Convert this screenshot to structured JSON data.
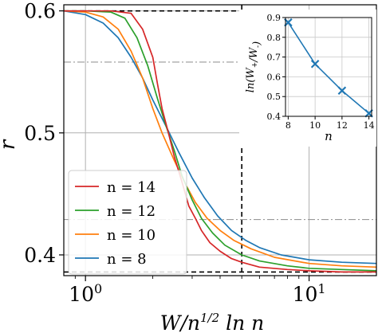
{
  "chart_data": [
    {
      "type": "line",
      "xscale": "log",
      "xlim": [
        0.8,
        20
      ],
      "ylim": [
        0.383,
        0.605
      ],
      "xlabel": "W/n^{1/2} ln n",
      "ylabel": "r",
      "x_ticks_major": [
        {
          "value": 1,
          "label": "10^0"
        },
        {
          "value": 10,
          "label": "10^1"
        }
      ],
      "y_ticks": [
        {
          "value": 0.4,
          "label": "0.4"
        },
        {
          "value": 0.5,
          "label": "0.5"
        },
        {
          "value": 0.6,
          "label": "0.6"
        }
      ],
      "grid": true,
      "legend_position": "lower-left",
      "series": [
        {
          "name": "n = 14",
          "color": "#d62728",
          "x": [
            0.8,
            1.0,
            1.3,
            1.6,
            1.8,
            2.0,
            2.1,
            2.2,
            2.35,
            2.5,
            2.7,
            2.9,
            3.1,
            3.3,
            3.6,
            4.0,
            4.5,
            5.0,
            6.0,
            8.0,
            10.0,
            14.0,
            20.0
          ],
          "y": [
            0.6,
            0.6,
            0.6,
            0.598,
            0.585,
            0.562,
            0.54,
            0.52,
            0.5,
            0.48,
            0.46,
            0.44,
            0.43,
            0.42,
            0.41,
            0.403,
            0.397,
            0.394,
            0.39,
            0.388,
            0.387,
            0.386,
            0.386
          ]
        },
        {
          "name": "n = 12",
          "color": "#2ca02c",
          "x": [
            0.8,
            1.0,
            1.3,
            1.5,
            1.7,
            1.9,
            2.1,
            2.3,
            2.5,
            2.7,
            3.0,
            3.3,
            3.7,
            4.2,
            5.0,
            6.0,
            8.0,
            10.0,
            14.0,
            20.0
          ],
          "y": [
            0.6,
            0.6,
            0.599,
            0.594,
            0.578,
            0.555,
            0.528,
            0.505,
            0.485,
            0.465,
            0.445,
            0.43,
            0.418,
            0.408,
            0.4,
            0.395,
            0.391,
            0.389,
            0.388,
            0.387
          ]
        },
        {
          "name": "n = 10",
          "color": "#ff7f0e",
          "x": [
            0.8,
            1.0,
            1.2,
            1.4,
            1.6,
            1.8,
            2.0,
            2.2,
            2.5,
            2.8,
            3.1,
            3.5,
            4.0,
            4.6,
            5.5,
            7.0,
            10.0,
            14.0,
            20.0
          ],
          "y": [
            0.6,
            0.599,
            0.595,
            0.585,
            0.567,
            0.545,
            0.52,
            0.5,
            0.477,
            0.458,
            0.443,
            0.43,
            0.42,
            0.412,
            0.405,
            0.398,
            0.393,
            0.391,
            0.39
          ]
        },
        {
          "name": "n = 8",
          "color": "#1f77b4",
          "x": [
            0.8,
            1.0,
            1.2,
            1.4,
            1.6,
            1.8,
            2.0,
            2.3,
            2.6,
            3.0,
            3.4,
            3.9,
            4.5,
            5.2,
            6.0,
            7.5,
            10.0,
            14.0,
            20.0
          ],
          "y": [
            0.6,
            0.597,
            0.59,
            0.578,
            0.562,
            0.545,
            0.527,
            0.505,
            0.485,
            0.463,
            0.447,
            0.432,
            0.42,
            0.412,
            0.406,
            0.4,
            0.396,
            0.394,
            0.393
          ]
        }
      ],
      "reference_lines": [
        {
          "orientation": "horizontal",
          "value": 0.6,
          "style": "dashed",
          "color": "#000000"
        },
        {
          "orientation": "horizontal",
          "value": 0.386,
          "style": "dashed",
          "color": "#000000"
        },
        {
          "orientation": "vertical",
          "value": 5.0,
          "style": "dashed",
          "color": "#000000"
        },
        {
          "orientation": "horizontal",
          "value": 0.558,
          "style": "dashdot",
          "color": "#999999"
        },
        {
          "orientation": "horizontal",
          "value": 0.429,
          "style": "dashdot",
          "color": "#999999"
        }
      ]
    },
    {
      "type": "line",
      "role": "inset",
      "xlabel": "n",
      "ylabel": "ln(W_+/W_-)",
      "xlim": [
        7.8,
        14.2
      ],
      "ylim": [
        0.4,
        0.9
      ],
      "x_ticks": [
        {
          "value": 8,
          "label": "8"
        },
        {
          "value": 10,
          "label": "10"
        },
        {
          "value": 12,
          "label": "12"
        },
        {
          "value": 14,
          "label": "14"
        }
      ],
      "y_ticks": [
        {
          "value": 0.4,
          "label": "0.4"
        },
        {
          "value": 0.5,
          "label": "0.5"
        },
        {
          "value": 0.6,
          "label": "0.6"
        },
        {
          "value": 0.7,
          "label": "0.7"
        },
        {
          "value": 0.8,
          "label": "0.8"
        },
        {
          "value": 0.9,
          "label": "0.9"
        }
      ],
      "grid": true,
      "series": [
        {
          "color": "#1f77b4",
          "marker": "x",
          "x": [
            8,
            10,
            12,
            14
          ],
          "y": [
            0.875,
            0.665,
            0.53,
            0.415
          ]
        }
      ]
    }
  ]
}
